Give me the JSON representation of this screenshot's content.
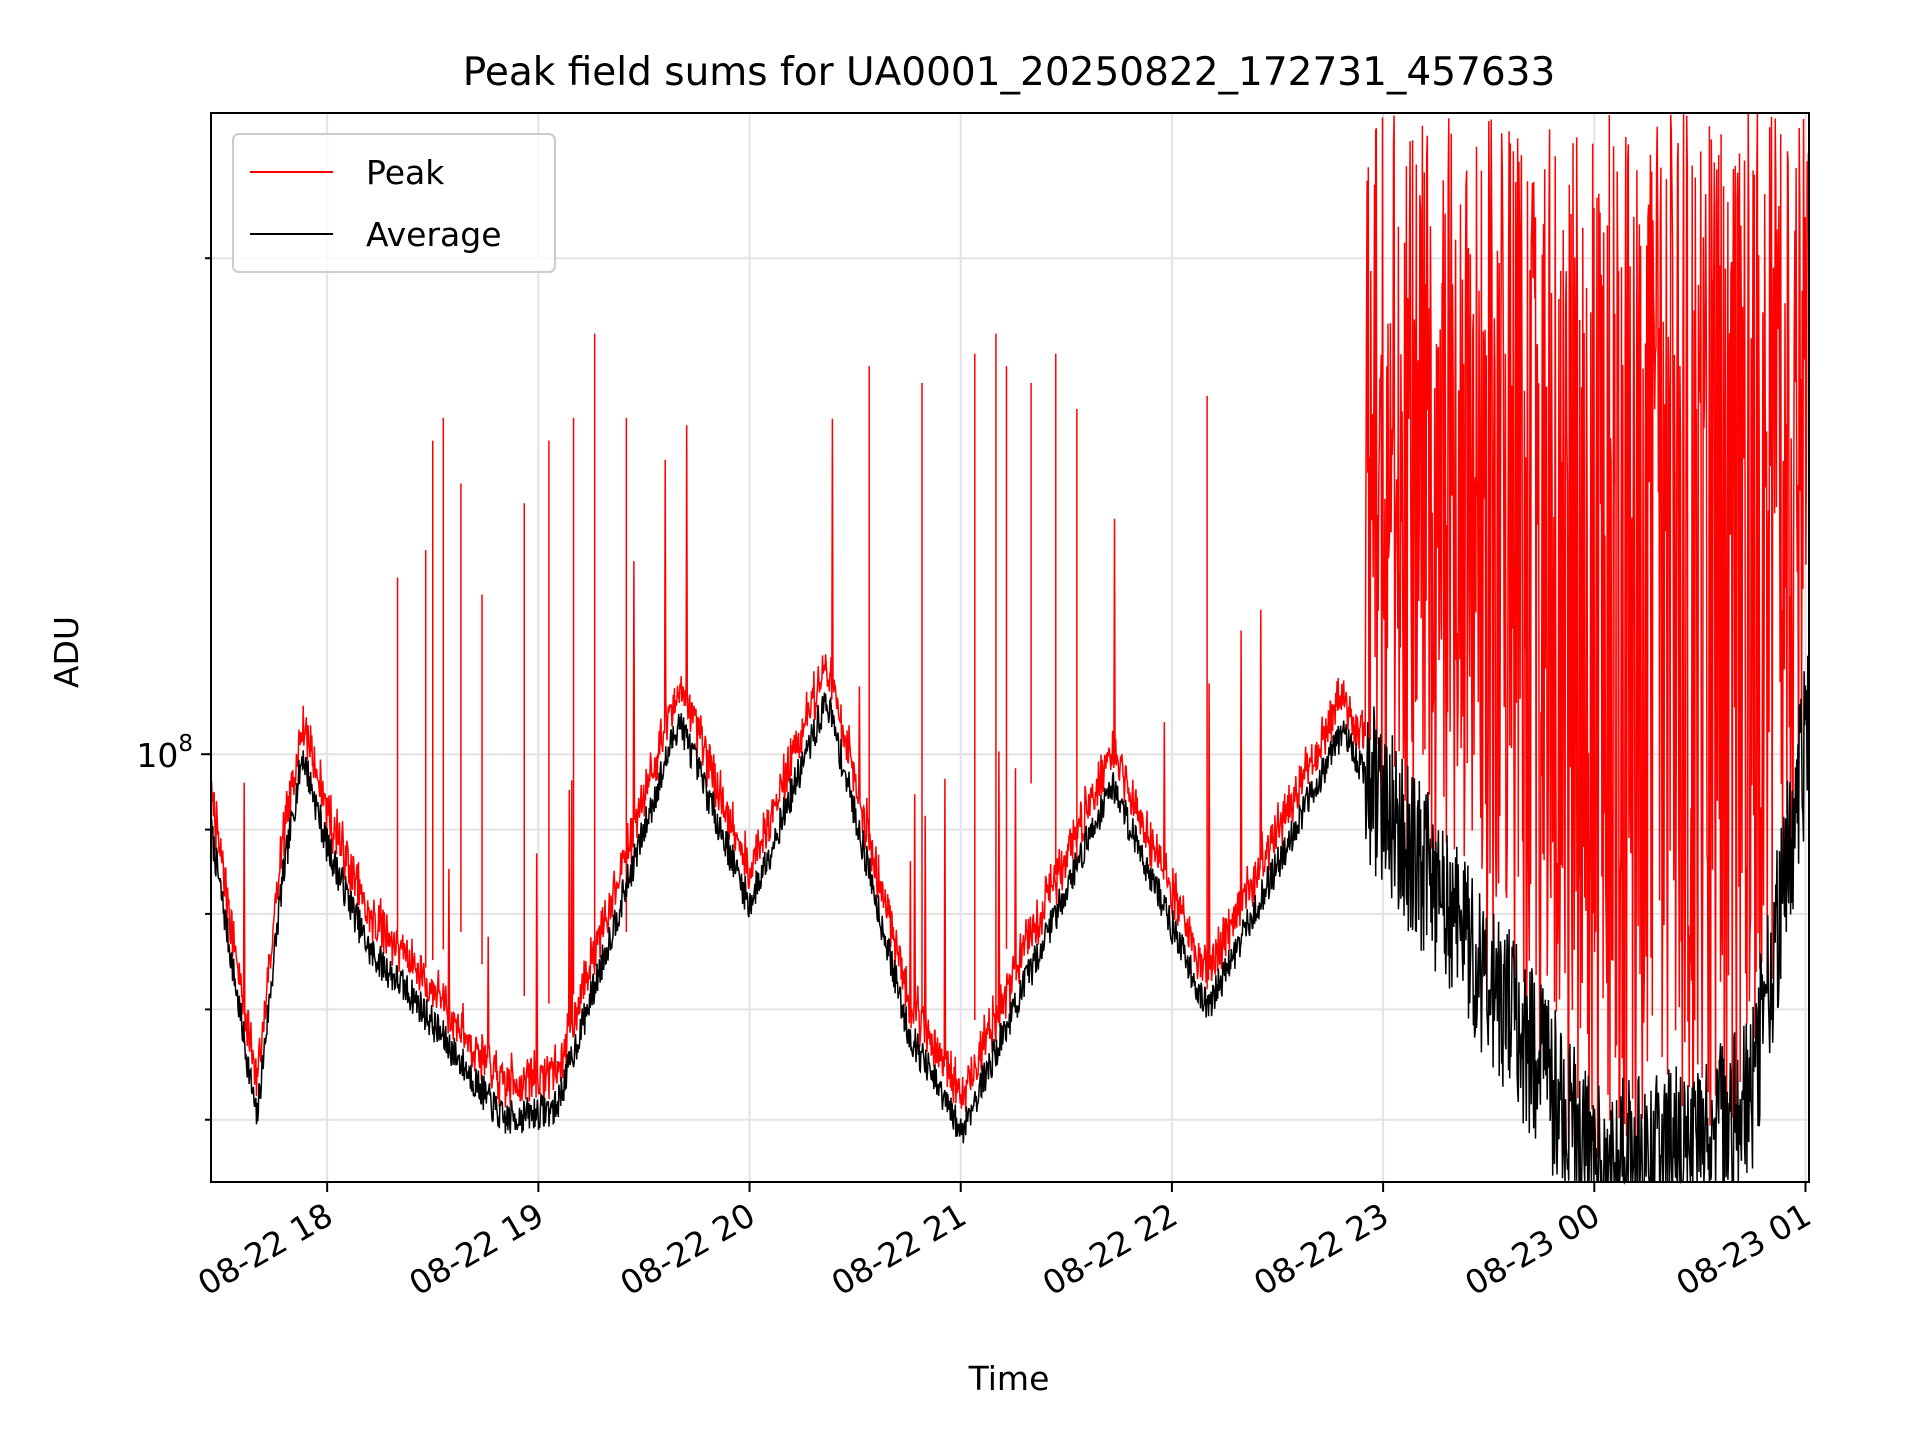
{
  "chart_data": {
    "type": "line",
    "title": "Peak field sums for UA0001_20250822_172731_457633",
    "xlabel": "Time",
    "ylabel": "ADU",
    "x_axis": "time",
    "x_range": [
      "2025-08-22T17:27",
      "2025-08-23T01:01"
    ],
    "y_scale": "log",
    "ylim": [
      55000000.0,
      245000000.0
    ],
    "y_major_ticks": [
      {
        "value": 100000000.0,
        "label_base": "10",
        "label_exp": "8"
      }
    ],
    "y_minor_ticks": [
      60000000.0,
      70000000.0,
      80000000.0,
      90000000.0,
      200000000.0
    ],
    "x_ticks": [
      {
        "value": "2025-08-22T18:00",
        "label": "08-22 18"
      },
      {
        "value": "2025-08-22T19:00",
        "label": "08-22 19"
      },
      {
        "value": "2025-08-22T20:00",
        "label": "08-22 20"
      },
      {
        "value": "2025-08-22T21:00",
        "label": "08-22 21"
      },
      {
        "value": "2025-08-22T22:00",
        "label": "08-22 22"
      },
      {
        "value": "2025-08-22T23:00",
        "label": "08-22 23"
      },
      {
        "value": "2025-08-23T00:00",
        "label": "08-23 00"
      },
      {
        "value": "2025-08-23T01:00",
        "label": "08-23 01"
      }
    ],
    "grid": true,
    "legend_position": "top-left",
    "series": [
      {
        "name": "Peak",
        "color": "#ff0000",
        "baseline": [
          [
            "2025-08-22T17:27",
            94000000.0
          ],
          [
            "2025-08-22T17:35",
            92000000.0
          ],
          [
            "2025-08-22T17:41",
            80000000.0
          ],
          [
            "2025-08-22T17:47",
            86000000.0
          ],
          [
            "2025-08-22T17:53",
            96000000.0
          ],
          [
            "2025-08-22T18:00",
            90000000.0
          ],
          [
            "2025-08-22T18:05",
            83000000.0
          ],
          [
            "2025-08-22T18:12",
            80000000.0
          ],
          [
            "2025-08-22T18:20",
            78000000.0
          ],
          [
            "2025-08-22T18:25",
            73000000.0
          ],
          [
            "2025-08-22T18:30",
            75000000.0
          ],
          [
            "2025-08-22T18:38",
            78000000.0
          ],
          [
            "2025-08-22T18:45",
            74000000.0
          ],
          [
            "2025-08-22T18:52",
            70000000.0
          ],
          [
            "2025-08-22T18:58",
            72000000.0
          ],
          [
            "2025-08-22T19:05",
            70000000.0
          ],
          [
            "2025-08-22T19:15",
            73000000.0
          ],
          [
            "2025-08-22T19:25",
            78000000.0
          ],
          [
            "2025-08-22T19:30",
            75000000.0
          ],
          [
            "2025-08-22T19:35",
            85000000.0
          ],
          [
            "2025-08-22T19:40",
            107000000.0
          ],
          [
            "2025-08-22T19:45",
            96000000.0
          ],
          [
            "2025-08-22T19:50",
            85000000.0
          ],
          [
            "2025-08-22T19:55",
            93000000.0
          ],
          [
            "2025-08-22T20:00",
            83000000.0
          ],
          [
            "2025-08-22T20:07",
            85000000.0
          ],
          [
            "2025-08-22T20:15",
            95000000.0
          ],
          [
            "2025-08-22T20:20",
            108000000.0
          ],
          [
            "2025-08-22T20:27",
            105000000.0
          ],
          [
            "2025-08-22T20:33",
            90000000.0
          ],
          [
            "2025-08-22T20:40",
            78000000.0
          ],
          [
            "2025-08-22T20:45",
            72000000.0
          ],
          [
            "2025-08-22T20:52",
            68000000.0
          ],
          [
            "2025-08-22T21:00",
            65000000.0
          ],
          [
            "2025-08-22T21:05",
            70000000.0
          ],
          [
            "2025-08-22T21:10",
            69000000.0
          ],
          [
            "2025-08-22T21:20",
            96000000.0
          ],
          [
            "2025-08-22T21:28",
            83000000.0
          ],
          [
            "2025-08-22T21:35",
            86000000.0
          ],
          [
            "2025-08-22T21:43",
            99000000.0
          ],
          [
            "2025-08-22T21:50",
            95000000.0
          ],
          [
            "2025-08-22T21:57",
            90000000.0
          ],
          [
            "2025-08-22T22:05",
            82000000.0
          ],
          [
            "2025-08-22T22:10",
            72000000.0
          ],
          [
            "2025-08-22T22:15",
            83000000.0
          ],
          [
            "2025-08-22T22:20",
            92000000.0
          ],
          [
            "2025-08-22T22:28",
            100000000.0
          ],
          [
            "2025-08-22T22:40",
            100000000.0
          ],
          [
            "2025-08-22T22:48",
            105000000.0
          ],
          [
            "2025-08-22T22:55",
            95000000.0
          ],
          [
            "2025-08-23T01:01",
            245000000.0
          ]
        ],
        "spikes": [
          [
            "2025-08-22T18:20",
            128000000.0
          ],
          [
            "2025-08-22T18:28",
            133000000.0
          ],
          [
            "2025-08-22T18:30",
            155000000.0
          ],
          [
            "2025-08-22T18:33",
            160000000.0
          ],
          [
            "2025-08-22T18:38",
            146000000.0
          ],
          [
            "2025-08-22T18:44",
            125000000.0
          ],
          [
            "2025-08-22T18:56",
            142000000.0
          ],
          [
            "2025-08-22T19:03",
            155000000.0
          ],
          [
            "2025-08-22T19:10",
            160000000.0
          ],
          [
            "2025-08-22T19:16",
            180000000.0
          ],
          [
            "2025-08-22T19:25",
            160000000.0
          ],
          [
            "2025-08-22T20:34",
            172000000.0
          ],
          [
            "2025-08-22T20:49",
            168000000.0
          ],
          [
            "2025-08-22T21:04",
            175000000.0
          ],
          [
            "2025-08-22T21:10",
            180000000.0
          ],
          [
            "2025-08-22T21:13",
            172000000.0
          ],
          [
            "2025-08-22T21:20",
            168000000.0
          ],
          [
            "2025-08-22T21:27",
            175000000.0
          ],
          [
            "2025-08-22T21:33",
            162000000.0
          ],
          [
            "2025-08-22T22:10",
            165000000.0
          ]
        ]
      },
      {
        "name": "Average",
        "color": "#000000",
        "baseline": [
          [
            "2025-08-22T17:27",
            90000000.0
          ],
          [
            "2025-08-22T17:40",
            60000000.0
          ],
          [
            "2025-08-22T17:47",
            83000000.0
          ],
          [
            "2025-08-22T17:53",
            100000000.0
          ],
          [
            "2025-08-22T18:00",
            88000000.0
          ],
          [
            "2025-08-22T18:12",
            76000000.0
          ],
          [
            "2025-08-22T18:25",
            71000000.0
          ],
          [
            "2025-08-22T18:50",
            60000000.0
          ],
          [
            "2025-08-22T19:05",
            61000000.0
          ],
          [
            "2025-08-22T19:40",
            105000000.0
          ],
          [
            "2025-08-22T20:00",
            81000000.0
          ],
          [
            "2025-08-22T20:22",
            108000000.0
          ],
          [
            "2025-08-22T20:45",
            68000000.0
          ],
          [
            "2025-08-22T21:00",
            59000000.0
          ],
          [
            "2025-08-22T21:43",
            96000000.0
          ],
          [
            "2025-08-22T22:10",
            70000000.0
          ],
          [
            "2025-08-22T22:48",
            103000000.0
          ],
          [
            "2025-08-22T23:20",
            80000000.0
          ],
          [
            "2025-08-23T00:00",
            57000000.0
          ],
          [
            "2025-08-23T00:30",
            58000000.0
          ],
          [
            "2025-08-23T00:45",
            63000000.0
          ],
          [
            "2025-08-23T01:01",
            105000000.0
          ]
        ]
      }
    ]
  }
}
